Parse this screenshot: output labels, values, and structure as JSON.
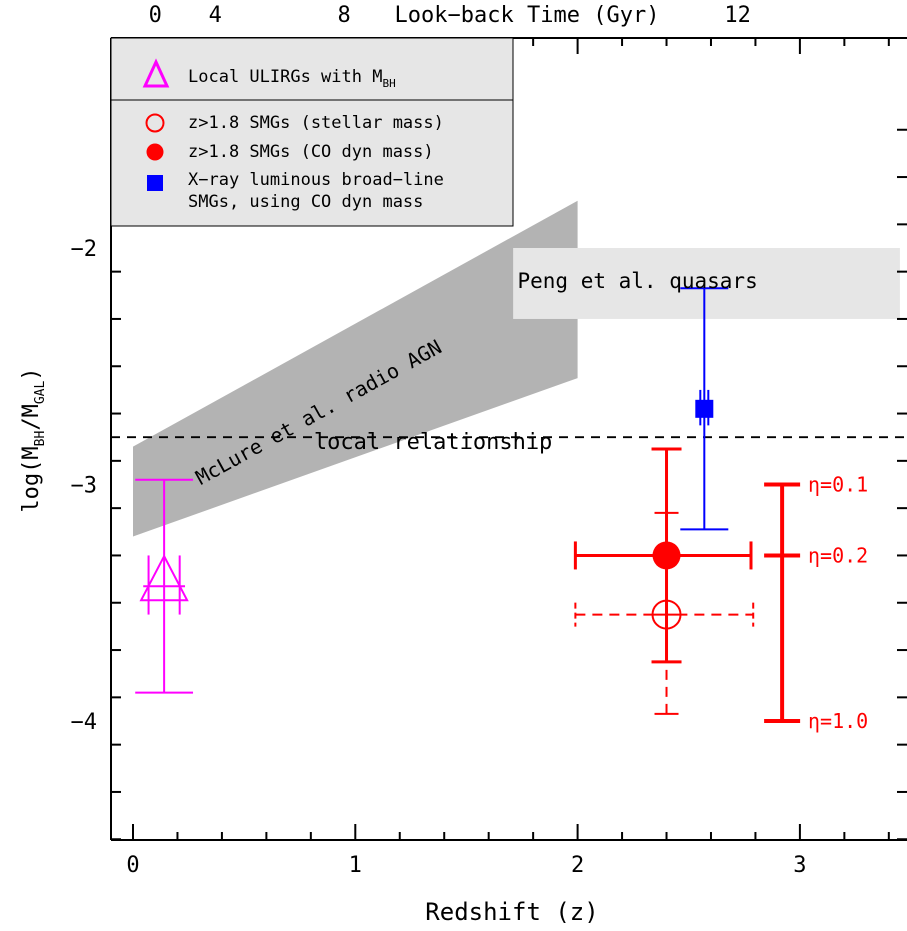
{
  "chart_data": {
    "type": "scatter",
    "xlabel": "Redshift (z)",
    "ylabel": "log(M",
    "ylabel_sub1": "BH",
    "ylabel_mid": "/M",
    "ylabel_sub2": "GAL",
    "ylabel_end": ")",
    "top_axis_label": "Look−back Time (Gyr)",
    "xlim": [
      -0.1,
      3.45
    ],
    "ylim": [
      -4.5,
      -1.5
    ],
    "x_ticks": [
      "0",
      "1",
      "2",
      "3"
    ],
    "x_tick_values": [
      0,
      1,
      2,
      3
    ],
    "y_ticks": [
      "−2",
      "−3",
      "−4"
    ],
    "y_tick_values": [
      -2,
      -3,
      -4
    ],
    "top_ticks": [
      {
        "label": "0",
        "z": 0.1
      },
      {
        "label": "4",
        "z": 0.37
      },
      {
        "label": "8",
        "z": 0.95
      },
      {
        "label": "12",
        "z": 2.72
      }
    ],
    "local_relationship": {
      "y": -2.8,
      "label": "local relationship"
    },
    "mclure_band": {
      "label": "McLure et al. radio AGN",
      "x": [
        0,
        2
      ],
      "y_top": [
        -2.84,
        -1.8
      ],
      "y_bottom": [
        -3.22,
        -2.55
      ],
      "color": "#b3b3b3"
    },
    "peng_box": {
      "label": "Peng et al. quasars",
      "x": [
        1.71,
        3.45
      ],
      "y": [
        -2.3,
        -2.0
      ],
      "color": "#e6e6e6"
    },
    "series": [
      {
        "name": "Local ULIRGs with M",
        "name_sub": "BH",
        "marker": "triangle-open",
        "color": "#ff00ff",
        "points": [
          {
            "x": 0.14,
            "y": -3.43,
            "x_err": [
              0.13,
              0.13
            ],
            "y_err_outer": [
              -3.88,
              -2.98
            ],
            "y_err_inner": [
              -3.55,
              -3.3
            ],
            "inner_x_half": 0.07
          }
        ]
      },
      {
        "name": "z>1.8 SMGs (stellar mass)",
        "marker": "circle-open",
        "color": "#ff0000",
        "points": [
          {
            "x": 2.4,
            "y": -3.55,
            "x_range": [
              1.99,
              2.79
            ],
            "y_range": [
              -3.97,
              -3.12
            ]
          }
        ]
      },
      {
        "name": "z>1.8 SMGs (CO dyn mass)",
        "marker": "circle-filled",
        "color": "#ff0000",
        "points": [
          {
            "x": 2.4,
            "y": -3.3,
            "x_range": [
              1.99,
              2.78
            ],
            "y_range": [
              -3.75,
              -2.85
            ]
          }
        ]
      },
      {
        "name": "X−ray luminous broad−line",
        "name_line2": "SMGs, using CO dyn mass",
        "marker": "square-filled",
        "color": "#0000ff",
        "points": [
          {
            "x": 2.57,
            "y": -2.68,
            "y_range": [
              -3.19,
              -2.17
            ],
            "inner_y_range": [
              -2.75,
              -2.6
            ]
          }
        ]
      }
    ],
    "eta_scale": {
      "x": 2.92,
      "ticks": [
        {
          "label": "η=0.1",
          "y": -3.0
        },
        {
          "label": "η=0.2",
          "y": -3.3
        },
        {
          "label": "η=1.0",
          "y": -4.0
        }
      ],
      "color": "#ff0000"
    },
    "legend_placement": "top-left"
  }
}
